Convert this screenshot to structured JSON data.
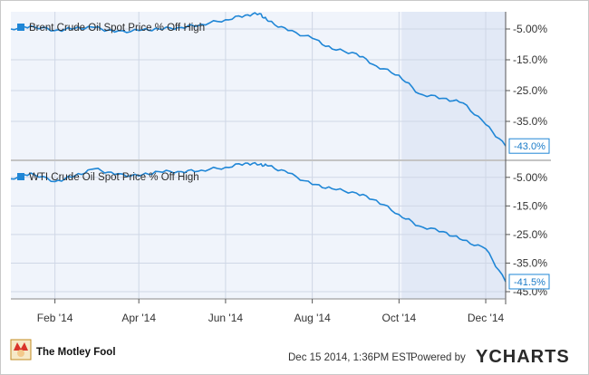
{
  "chart_data": [
    {
      "type": "line",
      "legend": "Brent Crude Oil Spot Price % Off High",
      "legend_position": "top-left",
      "color": "#1f86d6",
      "ylim": [
        0,
        -45
      ],
      "yticks": [
        "-5.00%",
        "-15.0%",
        "-25.0%",
        "-35.0%"
      ],
      "end_label": "-43.0%",
      "x": [
        "2014-01-01",
        "2014-01-15",
        "2014-02-01",
        "2014-02-15",
        "2014-03-01",
        "2014-03-15",
        "2014-04-01",
        "2014-04-15",
        "2014-05-01",
        "2014-05-15",
        "2014-06-01",
        "2014-06-15",
        "2014-06-25",
        "2014-07-01",
        "2014-07-15",
        "2014-08-01",
        "2014-08-15",
        "2014-09-01",
        "2014-09-15",
        "2014-10-01",
        "2014-10-15",
        "2014-11-01",
        "2014-11-15",
        "2014-12-01",
        "2014-12-15"
      ],
      "y": [
        -5.0,
        -4.0,
        -5.5,
        -4.8,
        -4.5,
        -6.0,
        -5.5,
        -5.0,
        -4.5,
        -3.5,
        -2.0,
        -0.5,
        0,
        -2.5,
        -5.5,
        -8.0,
        -11.5,
        -13.0,
        -17.0,
        -20.0,
        -26.0,
        -27.5,
        -29.0,
        -36.0,
        -43.0
      ]
    },
    {
      "type": "line",
      "legend": "WTI Crude Oil Spot Price % Off High",
      "legend_position": "top-left",
      "color": "#1f86d6",
      "ylim": [
        0,
        -45
      ],
      "yticks": [
        "-5.00%",
        "-15.0%",
        "-25.0%",
        "-35.0%",
        "-45.0%"
      ],
      "end_label": "-41.5%",
      "x": [
        "2014-01-01",
        "2014-01-15",
        "2014-02-01",
        "2014-02-15",
        "2014-03-01",
        "2014-03-15",
        "2014-04-01",
        "2014-04-15",
        "2014-05-01",
        "2014-05-15",
        "2014-06-01",
        "2014-06-15",
        "2014-06-25",
        "2014-07-01",
        "2014-07-15",
        "2014-08-01",
        "2014-08-15",
        "2014-09-01",
        "2014-09-15",
        "2014-10-01",
        "2014-10-15",
        "2014-11-01",
        "2014-11-15",
        "2014-12-01",
        "2014-12-15"
      ],
      "y": [
        -5.5,
        -3.5,
        -6.5,
        -4.5,
        -2.0,
        -4.0,
        -4.5,
        -3.0,
        -3.0,
        -2.5,
        -1.5,
        0,
        -0.5,
        -1.0,
        -3.5,
        -7.5,
        -9.0,
        -10.5,
        -13.0,
        -18.0,
        -22.0,
        -24.0,
        -27.0,
        -30.0,
        -41.5
      ]
    }
  ],
  "xaxis": {
    "range": [
      "2014-01-01",
      "2014-12-15"
    ],
    "ticks": [
      {
        "date": "2014-02-01",
        "label": "Feb '14"
      },
      {
        "date": "2014-04-01",
        "label": "Apr '14"
      },
      {
        "date": "2014-06-01",
        "label": "Jun '14"
      },
      {
        "date": "2014-08-01",
        "label": "Aug '14"
      },
      {
        "date": "2014-10-01",
        "label": "Oct '14"
      },
      {
        "date": "2014-12-01",
        "label": "Dec '14"
      }
    ]
  },
  "footer": {
    "brand": "The Motley Fool",
    "timestamp": "Dec 15 2014, 1:36PM EST.",
    "powered_by": "Powered by",
    "ycharts": "YCHARTS"
  },
  "colors": {
    "line": "#1f86d6",
    "grid": "#cfd7e6",
    "panel_bg": "#f0f4fb",
    "shade": "#e2e9f6"
  }
}
